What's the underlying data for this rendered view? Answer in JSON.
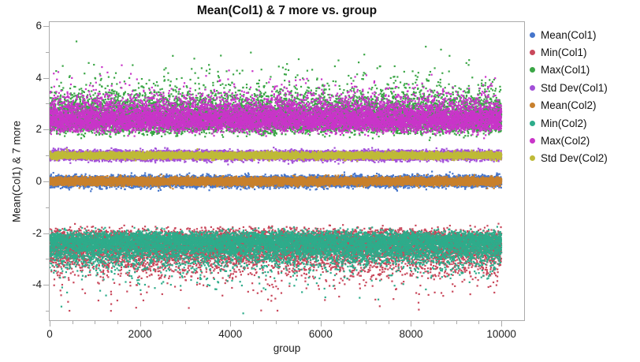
{
  "chart_data": {
    "type": "scatter",
    "title": "Mean(Col1) & 7 more vs. group",
    "xlabel": "group",
    "ylabel": "Mean(Col1) & 7 more",
    "xlim": [
      0,
      10504
    ],
    "ylim": [
      -5.36,
      6.15
    ],
    "grid": false,
    "legend_position": "right",
    "axis_color": "#ababab",
    "tick_label_color": "#1f1f1f",
    "marker_size_px": 2.2,
    "x_ticks": {
      "major_values": [
        0,
        2000,
        4000,
        6000,
        8000,
        10000
      ],
      "major_labels": [
        "0",
        "2000",
        "4000",
        "6000",
        "8000",
        "10000"
      ],
      "minor_values": [
        500,
        1000,
        1500,
        2500,
        3000,
        3500,
        4500,
        5000,
        5500,
        6500,
        7000,
        7500,
        8500,
        9000,
        9500
      ]
    },
    "y_ticks": {
      "major_values": [
        6,
        4,
        2,
        0,
        -2,
        -4
      ],
      "major_labels": [
        "6",
        "4",
        "2",
        "0",
        "-2",
        "-4"
      ],
      "minor_values": [
        5,
        3,
        1,
        -1,
        -3,
        -5
      ]
    },
    "groups": {
      "min": 0,
      "max": 10000,
      "count": 10000
    },
    "series": [
      {
        "name": "Mean(Col1)",
        "color": "#4575CB",
        "dist": "normal",
        "center": 0,
        "sd": 0.1
      },
      {
        "name": "Min(Col1)",
        "color": "#C9485B",
        "dist": "gumbel-min",
        "mu": -2.36,
        "beta": 0.33
      },
      {
        "name": "Max(Col1)",
        "color": "#3BA646",
        "dist": "gumbel-max",
        "mu": 2.36,
        "beta": 0.33
      },
      {
        "name": "Std Dev(Col1)",
        "color": "#A24FD8",
        "dist": "normal",
        "center": 1,
        "sd": 0.085
      },
      {
        "name": "Mean(Col2)",
        "color": "#C8802D",
        "dist": "normal",
        "center": 0,
        "sd": 0.072
      },
      {
        "name": "Min(Col2)",
        "color": "#2EAC8B",
        "dist": "gumbel-min",
        "mu": -2.33,
        "beta": 0.27
      },
      {
        "name": "Max(Col2)",
        "color": "#C935C9",
        "dist": "gumbel-max",
        "mu": 2.33,
        "beta": 0.27
      },
      {
        "name": "Std Dev(Col2)",
        "color": "#BFBA38",
        "dist": "normal",
        "center": 1,
        "sd": 0.058
      }
    ]
  }
}
